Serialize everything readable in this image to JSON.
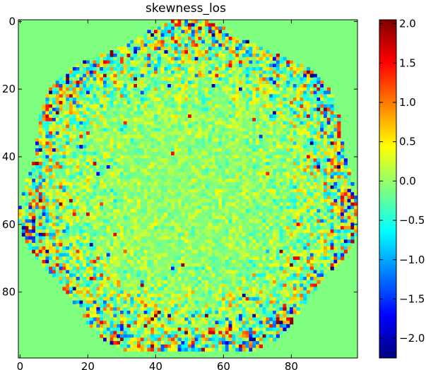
{
  "chart_data": {
    "type": "heatmap",
    "title": "skewness_los",
    "xlabel": "",
    "ylabel": "",
    "grid": false,
    "colormap": "jet",
    "background_value": 0.0,
    "x_range": [
      0,
      100
    ],
    "y_range": [
      0,
      100
    ],
    "y_inverted": true,
    "x_ticks": [
      "0",
      "20",
      "40",
      "60",
      "80"
    ],
    "y_ticks": [
      "0",
      "20",
      "40",
      "60",
      "80"
    ],
    "colorbar": {
      "vmin": -2.25,
      "vmax": 2.05,
      "ticks": [
        "2.0",
        "1.5",
        "1.0",
        "0.5",
        "0.0",
        "−0.5",
        "−1.0",
        "−1.5",
        "−2.0"
      ]
    },
    "noisy_disk": {
      "center": [
        50,
        50
      ],
      "radius": 49,
      "rim_amplitude": 2.0,
      "center_amplitude": 0.35
    },
    "grid_size": 100,
    "seed": 7
  }
}
